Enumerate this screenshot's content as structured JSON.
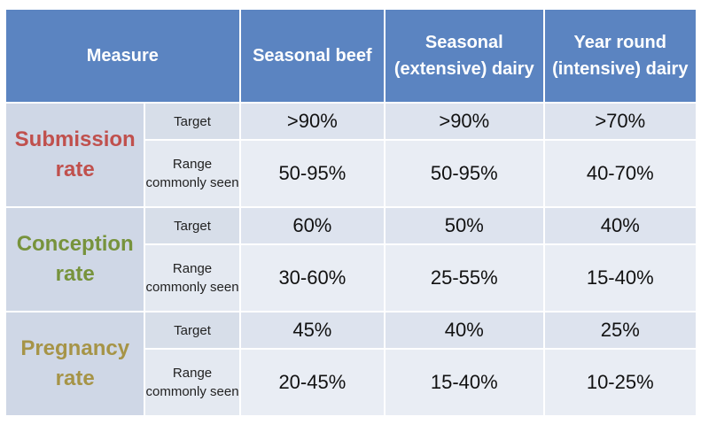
{
  "headers": {
    "measure": "Measure",
    "seasonal_beef": "Seasonal beef",
    "seasonal_dairy": "Seasonal (extensive) dairy",
    "year_round_dairy": "Year round (intensive) dairy"
  },
  "labels": {
    "target": "Target",
    "range": "Range commonly seen"
  },
  "colors": {
    "header_bg": "#5b84c1",
    "submission": "#c0504d",
    "conception": "#77933c",
    "pregnancy": "#a69447"
  },
  "rows": [
    {
      "measure": "Submission rate",
      "target": [
        ">90%",
        ">90%",
        ">70%"
      ],
      "range": [
        "50-95%",
        "50-95%",
        "40-70%"
      ]
    },
    {
      "measure": "Conception rate",
      "target": [
        "60%",
        "50%",
        "40%"
      ],
      "range": [
        "30-60%",
        "25-55%",
        "15-40%"
      ]
    },
    {
      "measure": "Pregnancy rate",
      "target": [
        "45%",
        "40%",
        "25%"
      ],
      "range": [
        "20-45%",
        "15-40%",
        "10-25%"
      ]
    }
  ]
}
